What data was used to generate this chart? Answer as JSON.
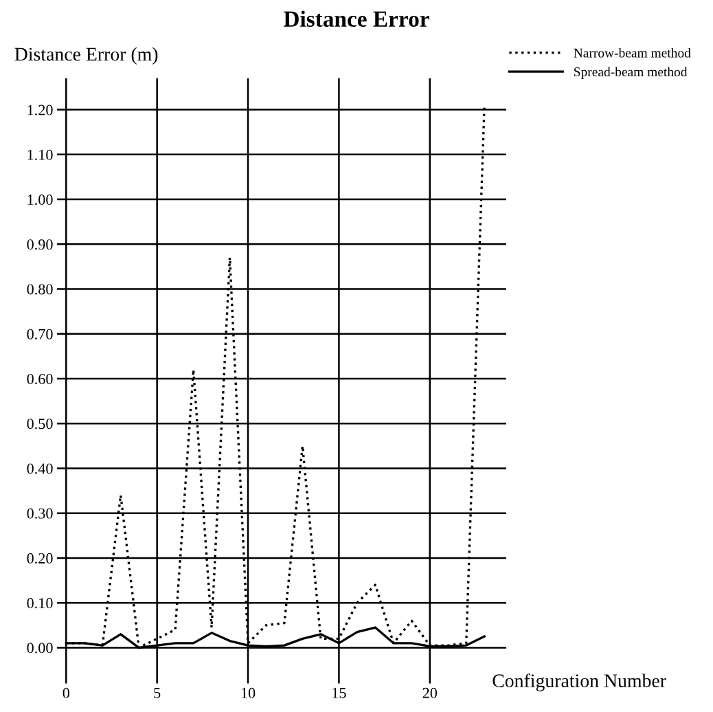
{
  "chart_data": {
    "type": "line",
    "title": "Distance Error",
    "xlabel": "Configuration Number",
    "ylabel": "Distance Error (m)",
    "x": [
      0,
      1,
      2,
      3,
      4,
      5,
      6,
      7,
      8,
      9,
      10,
      11,
      12,
      13,
      14,
      15,
      16,
      17,
      18,
      19,
      20,
      21,
      22,
      23
    ],
    "series": [
      {
        "name": "Narrow-beam method",
        "color": "#000000",
        "line_style": "dotted",
        "values": [
          0.01,
          0.01,
          0.005,
          0.34,
          0.0,
          0.02,
          0.04,
          0.62,
          0.045,
          0.87,
          0.01,
          0.05,
          0.055,
          0.45,
          0.02,
          0.02,
          0.1,
          0.14,
          0.01,
          0.06,
          0.005,
          0.005,
          0.01,
          1.21
        ]
      },
      {
        "name": "Spread-beam method",
        "color": "#000000",
        "line_style": "solid",
        "values": [
          0.01,
          0.01,
          0.005,
          0.03,
          0.0,
          0.005,
          0.01,
          0.01,
          0.033,
          0.015,
          0.005,
          0.003,
          0.005,
          0.02,
          0.03,
          0.01,
          0.035,
          0.045,
          0.01,
          0.01,
          0.003,
          0.003,
          0.005,
          0.025
        ]
      }
    ],
    "xlim": [
      -0.5,
      24.2
    ],
    "ylim": [
      -0.08,
      1.27
    ],
    "xticks": [
      0,
      5,
      10,
      15,
      20
    ],
    "yticks": [
      {
        "value": 0,
        "label": "0.00"
      },
      {
        "value": 0.1,
        "label": "0.10"
      },
      {
        "value": 0.2,
        "label": "0.20"
      },
      {
        "value": 0.3,
        "label": "0.30"
      },
      {
        "value": 0.4,
        "label": "0.40"
      },
      {
        "value": 0.5,
        "label": "0.50"
      },
      {
        "value": 0.6,
        "label": "0.60"
      },
      {
        "value": 0.7,
        "label": "0.70"
      },
      {
        "value": 0.8,
        "label": "0.80"
      },
      {
        "value": 0.9,
        "label": "0.90"
      },
      {
        "value": 1.0,
        "label": "1.00"
      },
      {
        "value": 1.1,
        "label": "1.10"
      },
      {
        "value": 1.2,
        "label": "1.20"
      }
    ],
    "grid": true,
    "legend": "top right",
    "marker": "none"
  }
}
